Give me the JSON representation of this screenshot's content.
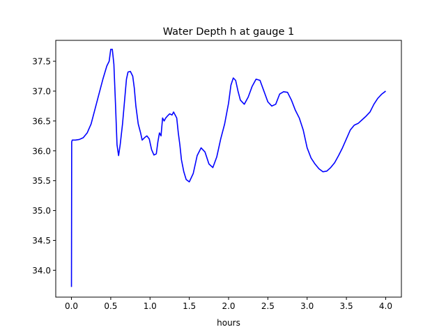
{
  "chart_data": {
    "type": "line",
    "title": "Water Depth h at gauge 1",
    "xlabel": "hours",
    "ylabel": "",
    "xlim": [
      -0.2,
      4.2
    ],
    "ylim": [
      33.55,
      37.85
    ],
    "grid": false,
    "legend": "none",
    "x_ticks": [
      0.0,
      0.5,
      1.0,
      1.5,
      2.0,
      2.5,
      3.0,
      3.5,
      4.0
    ],
    "x_tick_labels": [
      "0.0",
      "0.5",
      "1.0",
      "1.5",
      "2.0",
      "2.5",
      "3.0",
      "3.5",
      "4.0"
    ],
    "y_ticks": [
      34.0,
      34.5,
      35.0,
      35.5,
      36.0,
      36.5,
      37.0,
      37.5
    ],
    "y_tick_labels": [
      "34.0",
      "34.5",
      "35.0",
      "35.5",
      "36.0",
      "36.5",
      "37.0",
      "37.5"
    ],
    "series": [
      {
        "color": "#0000ff",
        "x": [
          0.0,
          0.003,
          0.01,
          0.05,
          0.1,
          0.15,
          0.2,
          0.25,
          0.3,
          0.35,
          0.4,
          0.45,
          0.48,
          0.5,
          0.52,
          0.54,
          0.56,
          0.58,
          0.6,
          0.62,
          0.65,
          0.68,
          0.7,
          0.72,
          0.75,
          0.78,
          0.8,
          0.82,
          0.85,
          0.88,
          0.9,
          0.93,
          0.96,
          0.99,
          1.02,
          1.05,
          1.08,
          1.1,
          1.12,
          1.14,
          1.16,
          1.18,
          1.2,
          1.22,
          1.25,
          1.28,
          1.3,
          1.32,
          1.34,
          1.36,
          1.38,
          1.4,
          1.43,
          1.46,
          1.5,
          1.55,
          1.6,
          1.65,
          1.7,
          1.75,
          1.8,
          1.85,
          1.9,
          1.95,
          2.0,
          2.03,
          2.06,
          2.09,
          2.12,
          2.15,
          2.2,
          2.25,
          2.3,
          2.35,
          2.4,
          2.45,
          2.5,
          2.55,
          2.6,
          2.65,
          2.7,
          2.75,
          2.8,
          2.85,
          2.9,
          2.95,
          3.0,
          3.05,
          3.1,
          3.15,
          3.2,
          3.25,
          3.3,
          3.35,
          3.4,
          3.45,
          3.5,
          3.55,
          3.6,
          3.65,
          3.7,
          3.75,
          3.8,
          3.85,
          3.9,
          3.95,
          4.0
        ],
        "y": [
          33.72,
          36.15,
          36.18,
          36.18,
          36.19,
          36.22,
          36.3,
          36.45,
          36.7,
          36.95,
          37.2,
          37.42,
          37.5,
          37.7,
          37.7,
          37.45,
          36.8,
          36.1,
          35.92,
          36.1,
          36.45,
          36.9,
          37.2,
          37.32,
          37.33,
          37.25,
          37.05,
          36.75,
          36.45,
          36.3,
          36.18,
          36.22,
          36.25,
          36.2,
          36.02,
          35.93,
          35.95,
          36.15,
          36.3,
          36.25,
          36.55,
          36.5,
          36.55,
          36.58,
          36.62,
          36.6,
          36.65,
          36.6,
          36.55,
          36.3,
          36.1,
          35.85,
          35.65,
          35.52,
          35.48,
          35.62,
          35.92,
          36.05,
          35.98,
          35.78,
          35.72,
          35.9,
          36.2,
          36.45,
          36.8,
          37.1,
          37.22,
          37.18,
          37.0,
          36.85,
          36.78,
          36.9,
          37.08,
          37.2,
          37.18,
          37.0,
          36.82,
          36.75,
          36.78,
          36.95,
          36.99,
          36.98,
          36.85,
          36.68,
          36.55,
          36.35,
          36.05,
          35.88,
          35.78,
          35.7,
          35.65,
          35.66,
          35.72,
          35.8,
          35.92,
          36.05,
          36.2,
          36.35,
          36.43,
          36.46,
          36.52,
          36.58,
          36.65,
          36.78,
          36.88,
          36.95,
          37.0
        ]
      }
    ]
  }
}
